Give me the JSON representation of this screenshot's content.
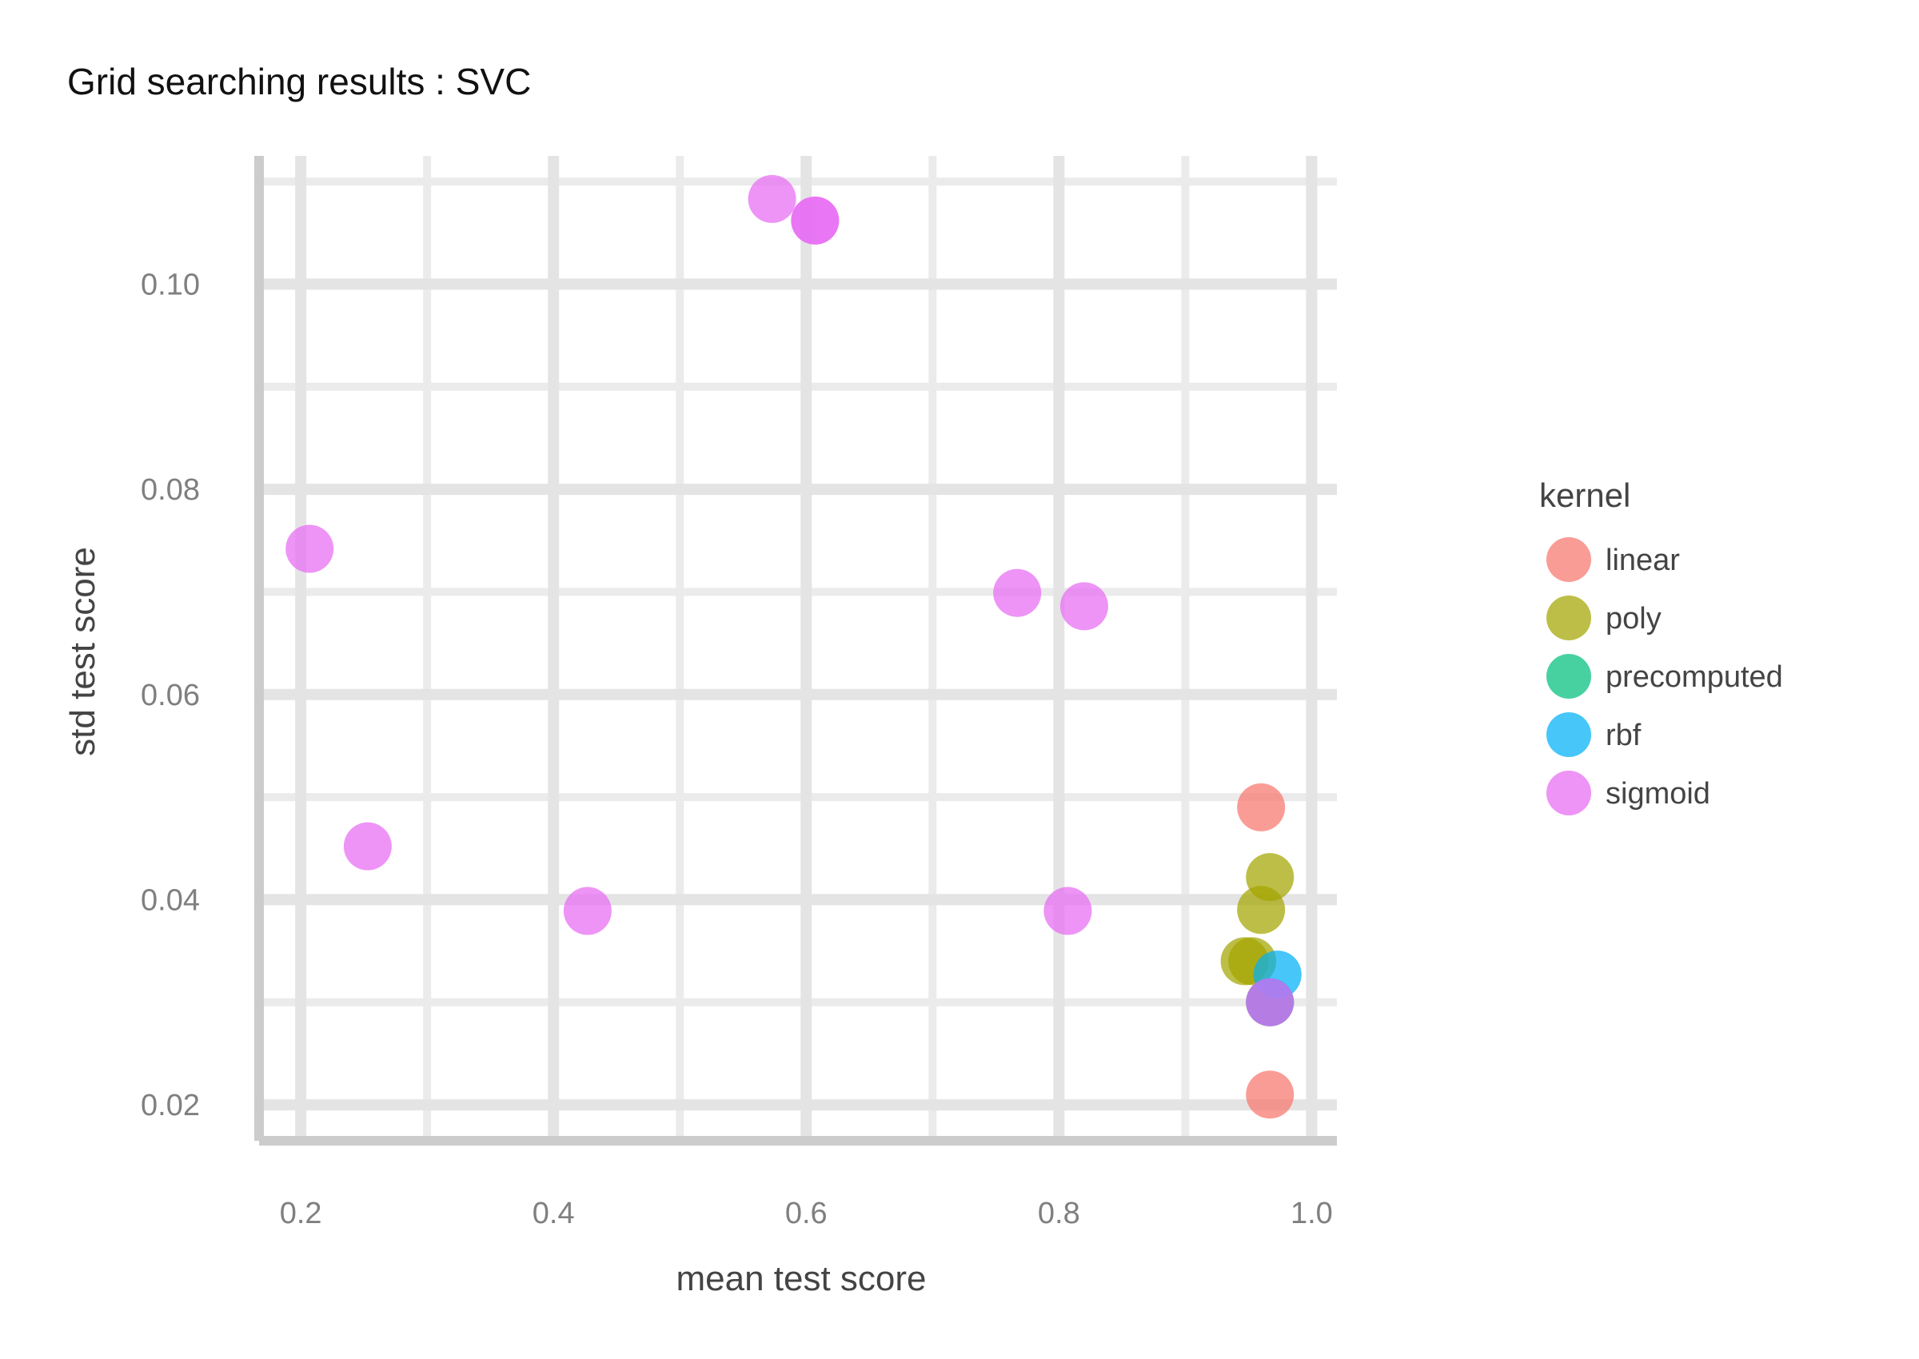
{
  "chart_data": {
    "type": "scatter",
    "title": "Grid searching results :  SVC",
    "xlabel": "mean test score",
    "ylabel": "std test score",
    "xlim": [
      0.167,
      1.02
    ],
    "ylim": [
      0.0165,
      0.1125
    ],
    "x_ticks": [
      {
        "value": 0.2,
        "label": "0.2"
      },
      {
        "value": 0.4,
        "label": "0.4"
      },
      {
        "value": 0.6,
        "label": "0.6"
      },
      {
        "value": 0.8,
        "label": "0.8"
      },
      {
        "value": 1.0,
        "label": "1.0"
      }
    ],
    "y_ticks": [
      {
        "value": 0.02,
        "label": "0.02"
      },
      {
        "value": 0.04,
        "label": "0.04"
      },
      {
        "value": 0.06,
        "label": "0.06"
      },
      {
        "value": 0.08,
        "label": "0.08"
      },
      {
        "value": 0.1,
        "label": "0.10"
      }
    ],
    "grid": true,
    "legend": {
      "title": "kernel",
      "placement": "right"
    },
    "series": [
      {
        "name": "linear",
        "color": "#F8766D",
        "points": [
          {
            "x": 0.96,
            "y": 0.049
          },
          {
            "x": 0.967,
            "y": 0.03
          },
          {
            "x": 0.967,
            "y": 0.021
          }
        ]
      },
      {
        "name": "poly",
        "color": "#A3A500",
        "points": [
          {
            "x": 0.967,
            "y": 0.0422
          },
          {
            "x": 0.96,
            "y": 0.039
          },
          {
            "x": 0.947,
            "y": 0.034
          },
          {
            "x": 0.953,
            "y": 0.034
          },
          {
            "x": 0.967,
            "y": 0.03
          }
        ]
      },
      {
        "name": "precomputed",
        "color": "#00BF7D",
        "points": []
      },
      {
        "name": "rbf",
        "color": "#00B0F6",
        "points": [
          {
            "x": 0.973,
            "y": 0.0327
          },
          {
            "x": 0.967,
            "y": 0.03
          }
        ]
      },
      {
        "name": "sigmoid",
        "color": "#E76BF3",
        "points": [
          {
            "x": 0.573,
            "y": 0.1083
          },
          {
            "x": 0.607,
            "y": 0.1062
          },
          {
            "x": 0.607,
            "y": 0.1062
          },
          {
            "x": 0.207,
            "y": 0.0742
          },
          {
            "x": 0.767,
            "y": 0.0699
          },
          {
            "x": 0.82,
            "y": 0.0686
          },
          {
            "x": 0.253,
            "y": 0.0452
          },
          {
            "x": 0.427,
            "y": 0.0389
          },
          {
            "x": 0.807,
            "y": 0.0389
          },
          {
            "x": 0.967,
            "y": 0.03
          }
        ]
      }
    ]
  }
}
